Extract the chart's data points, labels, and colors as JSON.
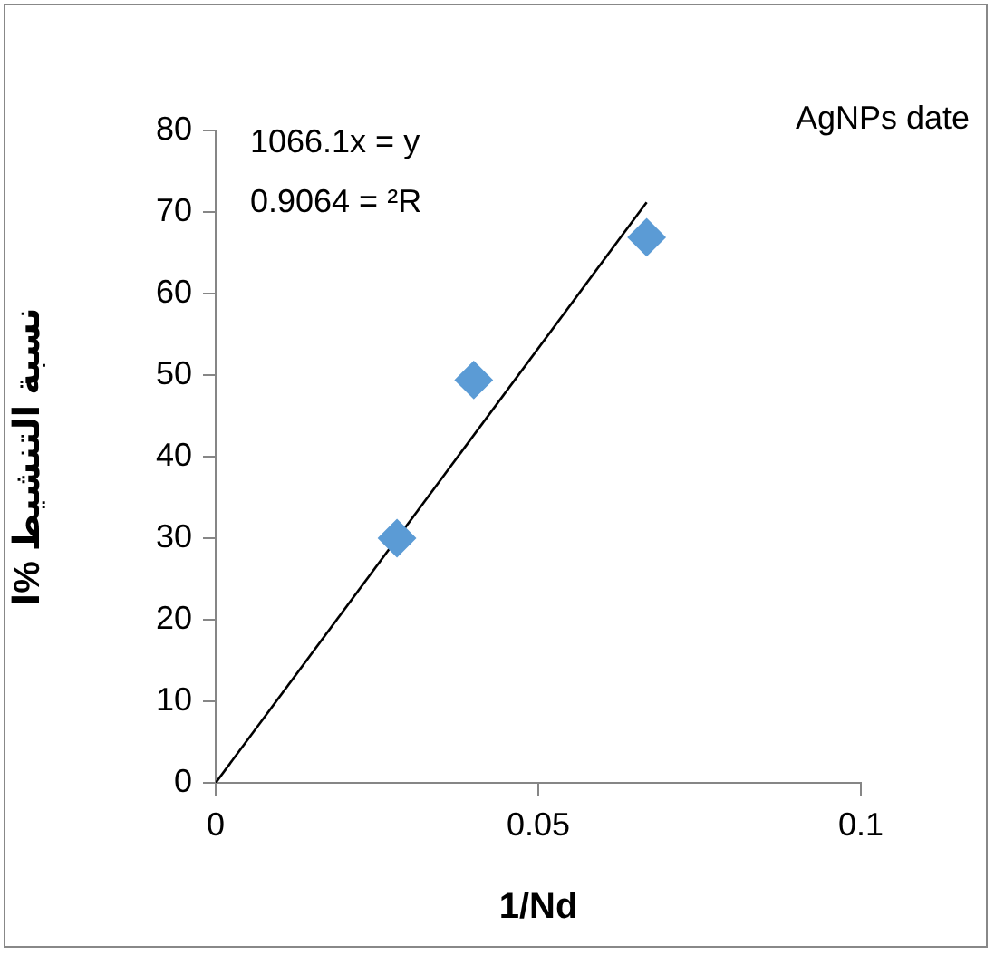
{
  "chart_data": {
    "type": "scatter",
    "title": "AgNPs date",
    "xlabel": "1/Nd",
    "ylabel": "نسبة التنشيط %ا",
    "annotations": [
      "1066.1x = y",
      "0.9064 = ²R"
    ],
    "series": [
      {
        "type": "scatter",
        "marker": "diamond",
        "color": "#5b9bd5",
        "x": [
          0.0281,
          0.04,
          0.0668
        ],
        "values": [
          30,
          49.4,
          66.9
        ]
      },
      {
        "type": "line",
        "marker": "none",
        "color": "#000000",
        "x": [
          0,
          0.0668
        ],
        "values": [
          0,
          71.2
        ]
      }
    ],
    "xlim": [
      0,
      0.1
    ],
    "xticks": [
      0,
      0.05,
      0.1
    ],
    "ylim": [
      0,
      80
    ],
    "yticks": [
      0,
      10,
      20,
      30,
      40,
      50,
      60,
      70,
      80
    ],
    "grid": false,
    "legend": false
  }
}
